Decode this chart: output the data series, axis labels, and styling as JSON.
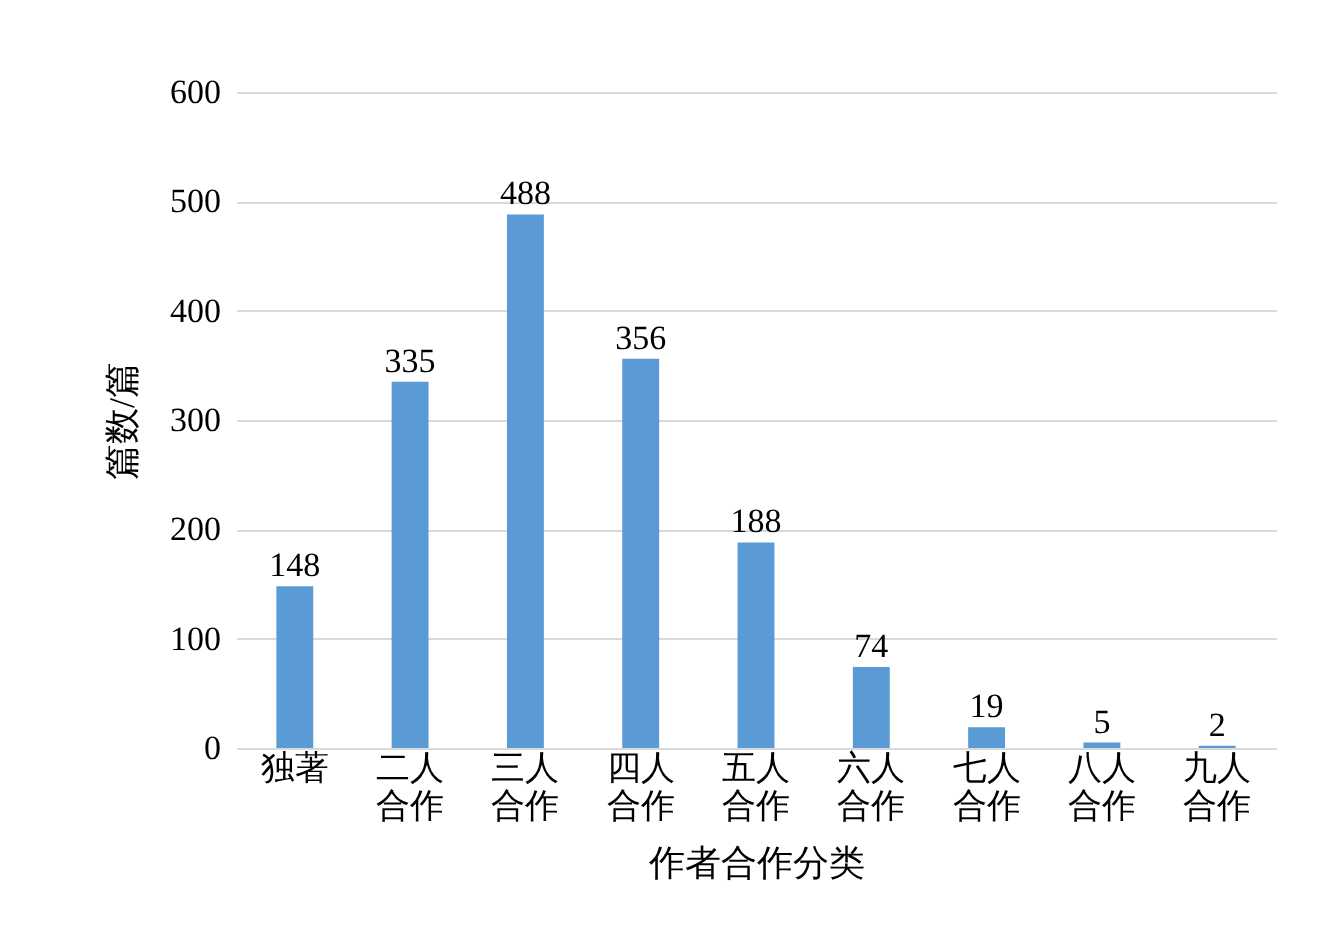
{
  "chart_data": {
    "type": "bar",
    "xlabel": "作者合作分类",
    "ylabel": "篇数/篇",
    "categories": [
      "独著",
      "二人合作",
      "三人合作",
      "四人合作",
      "五人合作",
      "六人合作",
      "七人合作",
      "八人合作",
      "九人合作"
    ],
    "values": [
      148,
      335,
      488,
      356,
      188,
      74,
      19,
      5,
      2
    ],
    "color": "#5b9bd5",
    "ylim": [
      0,
      600
    ],
    "yticks": [
      0,
      100,
      200,
      300,
      400,
      500,
      600
    ],
    "grid": "y",
    "data_labels": true
  }
}
